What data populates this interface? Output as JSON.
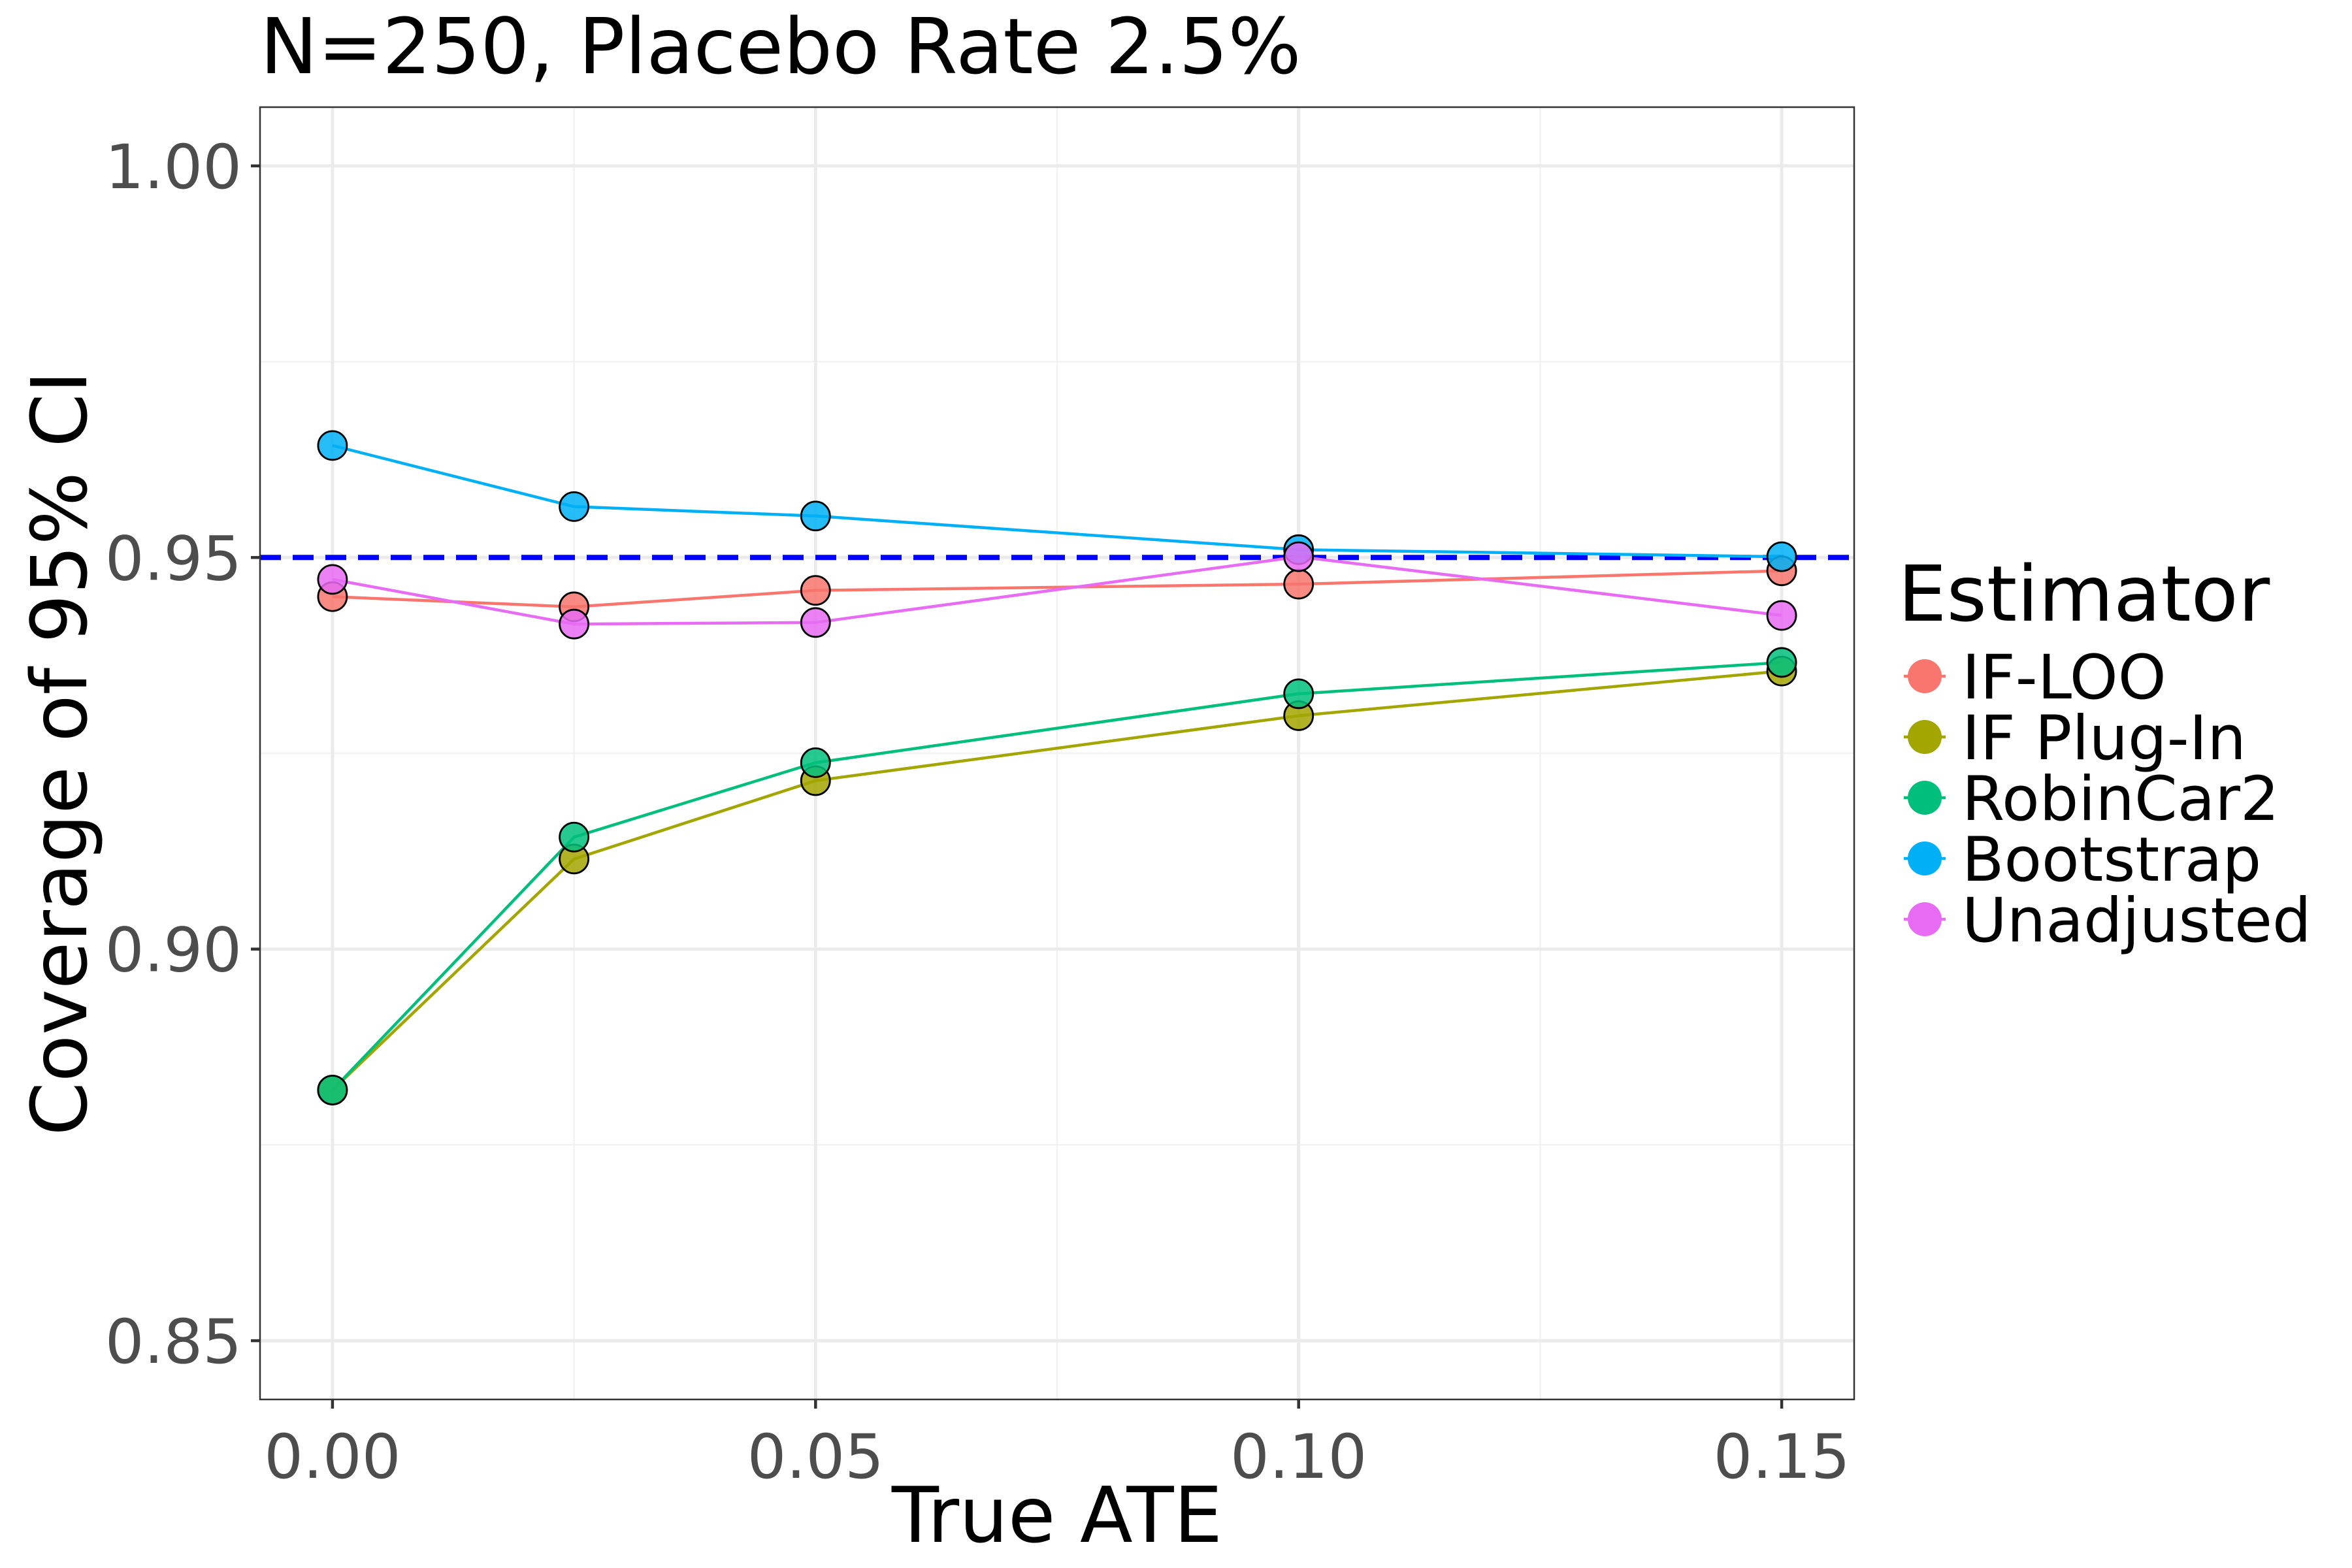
{
  "chart_data": {
    "type": "line",
    "title": "N=250, Placebo Rate 2.5%",
    "xlabel": "True ATE",
    "ylabel": "Coverage of 95% CI",
    "xlim": [
      -0.0075,
      0.1575
    ],
    "ylim": [
      0.8425,
      1.0075
    ],
    "x_ticks": [
      0.0,
      0.05,
      0.1,
      0.15
    ],
    "x_tick_labels": [
      "0.00",
      "0.05",
      "0.10",
      "0.15"
    ],
    "y_ticks": [
      0.85,
      0.9,
      0.95,
      1.0
    ],
    "y_tick_labels": [
      "0.85",
      "0.90",
      "0.95",
      "1.00"
    ],
    "grid": true,
    "reference_line": {
      "y": 0.95,
      "style": "dashed",
      "color": "#0000ff"
    },
    "legend": {
      "title": "Estimator",
      "position": "right"
    },
    "x": [
      0.0,
      0.025,
      0.05,
      0.1,
      0.15
    ],
    "series": [
      {
        "name": "IF-LOO",
        "color": "#F8766D",
        "values": [
          0.945,
          0.9437,
          0.9458,
          0.9466,
          0.9483
        ]
      },
      {
        "name": "IF Plug-In",
        "color": "#A3A500",
        "values": [
          0.882,
          0.9115,
          0.9215,
          0.9298,
          0.9355
        ]
      },
      {
        "name": "RobinCar2",
        "color": "#00BF7D",
        "values": [
          0.882,
          0.9143,
          0.9238,
          0.9326,
          0.9366
        ]
      },
      {
        "name": "Bootstrap",
        "color": "#00B0F6",
        "values": [
          0.9643,
          0.9565,
          0.9553,
          0.951,
          0.9501
        ]
      },
      {
        "name": "Unadjusted",
        "color": "#E76BF3",
        "values": [
          0.9472,
          0.9415,
          0.9417,
          0.9501,
          0.9426
        ]
      }
    ]
  }
}
